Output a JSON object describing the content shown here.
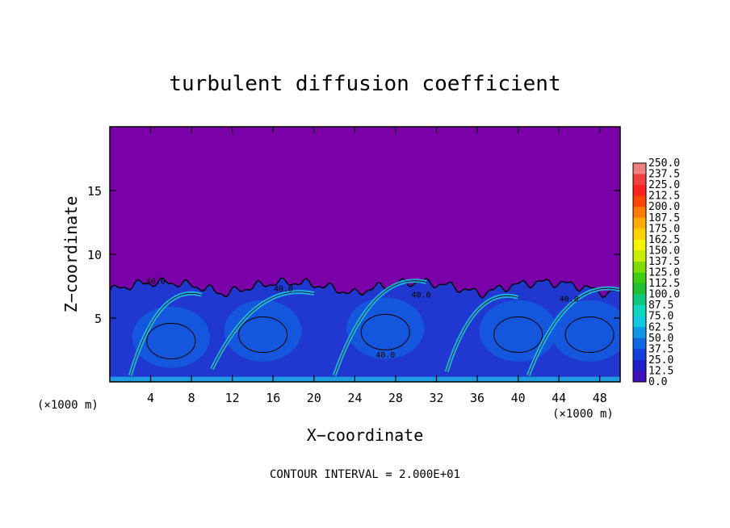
{
  "chart_data": {
    "type": "heatmap",
    "title": "turbulent diffusion coefficient",
    "xlabel": "X−coordinate",
    "ylabel": "Z−coordinate",
    "x_unit_left": "(×1000 m)",
    "x_unit_right": "(×1000 m)",
    "footer": "CONTOUR INTERVAL = 2.000E+01",
    "xlim": [
      0,
      50
    ],
    "ylim": [
      0,
      20
    ],
    "x_ticks": [
      4,
      8,
      12,
      16,
      20,
      24,
      28,
      32,
      36,
      40,
      44,
      48
    ],
    "y_ticks": [
      5,
      10,
      15
    ],
    "x_tick_labels": [
      "4",
      "8",
      "12",
      "16",
      "20",
      "24",
      "28",
      "32",
      "36",
      "40",
      "44",
      "48"
    ],
    "y_tick_labels": [
      "5",
      "10",
      "15"
    ],
    "contour_labels": [
      {
        "text": "40.0",
        "x": 4.5,
        "z": 7.7
      },
      {
        "text": "40.0",
        "x": 17.0,
        "z": 7.1
      },
      {
        "text": "40.0",
        "x": 27.0,
        "z": 1.9
      },
      {
        "text": "40.0",
        "x": 30.5,
        "z": 6.6
      },
      {
        "text": "40.0",
        "x": 45.0,
        "z": 6.3
      }
    ],
    "colorbar": {
      "levels": [
        "250.0",
        "237.5",
        "225.0",
        "212.5",
        "200.0",
        "187.5",
        "175.0",
        "162.5",
        "150.0",
        "137.5",
        "125.0",
        "112.5",
        "100.0",
        "87.5",
        "75.0",
        "62.5",
        "50.0",
        "37.5",
        "25.0",
        "12.5",
        "0.0"
      ],
      "colors": [
        "#f08080",
        "#f04040",
        "#ff2020",
        "#ff4400",
        "#ff7a00",
        "#ffaa00",
        "#ffd200",
        "#f8f400",
        "#c8ec00",
        "#80dc00",
        "#40cc10",
        "#20c030",
        "#10c880",
        "#10d8c0",
        "#10c8e0",
        "#1098e8",
        "#1068e0",
        "#1040d8",
        "#2020c8",
        "#4010b8",
        "#6a00b0"
      ]
    },
    "field_description_colors": {
      "background": "#7a00a8",
      "low": "#2038d0",
      "mid": "#1060e0",
      "high": "#20c8e8"
    }
  }
}
